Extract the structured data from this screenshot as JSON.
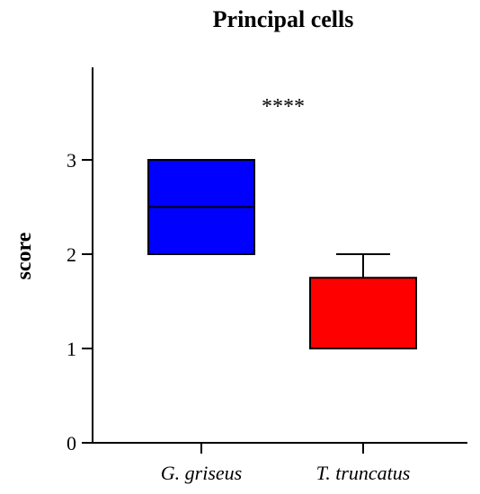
{
  "chart_data": {
    "type": "box",
    "title": "Principal cells",
    "ylabel": "score",
    "xlabel": "",
    "ylim": [
      0,
      4
    ],
    "yticks": [
      0,
      1,
      2,
      3
    ],
    "categories": [
      "G. griseus",
      "T. truncatus"
    ],
    "boxes": [
      {
        "category": "G. griseus",
        "min": 2.0,
        "q1": 2.0,
        "median": 2.5,
        "q3": 3.0,
        "max": 3.0,
        "color": "#0000ff"
      },
      {
        "category": "T. truncatus",
        "min": 1.0,
        "q1": 1.0,
        "median": 1.0,
        "q3": 1.75,
        "max": 2.0,
        "color": "#ff0000"
      }
    ],
    "annotation": "****",
    "grid": false
  }
}
